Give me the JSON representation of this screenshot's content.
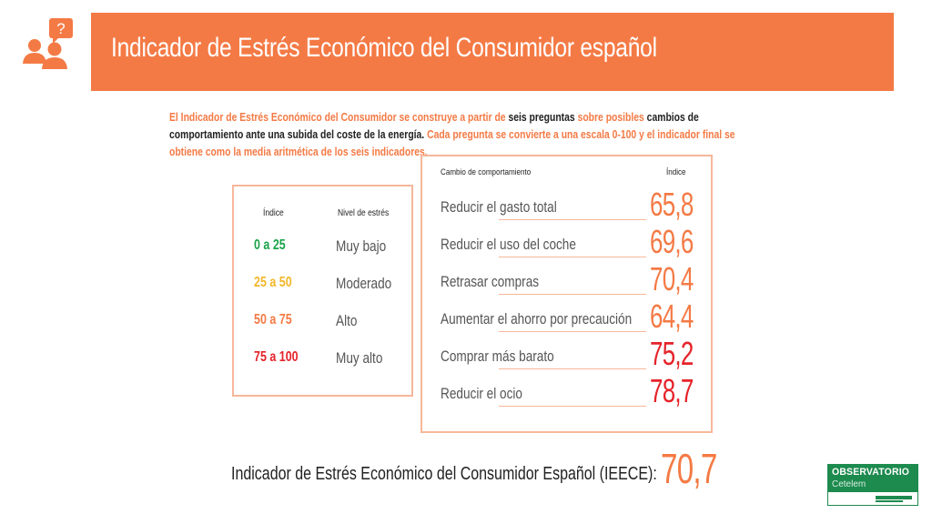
{
  "header": {
    "title": "Indicador de Estrés Económico del Consumidor español",
    "icon": "people-question-icon",
    "color": "#f47a45"
  },
  "intro": {
    "p1": "El Indicador de Estrés Económico del Consumidor se construye a partir de ",
    "p2": "seis preguntas",
    "p3": " sobre posibles ",
    "p4": "cambios de comportamiento ante una subida del coste de la energía.",
    "p5": " Cada pregunta se convierte a una escala 0-100 y el indicador final se obtiene como la media aritmética de los seis indicadores."
  },
  "legend": {
    "col_index": "Índice",
    "col_level": "Nivel de estrés",
    "rows": [
      {
        "range": "0 a 25",
        "level": "Muy bajo",
        "color": "#1aa34a"
      },
      {
        "range": "25 a 50",
        "level": "Moderado",
        "color": "#f3b72a"
      },
      {
        "range": "50 a 75",
        "level": "Alto",
        "color": "#f47a45"
      },
      {
        "range": "75 a 100",
        "level": "Muy alto",
        "color": "#e5232a"
      }
    ]
  },
  "behaviour": {
    "col_change": "Cambio de comportamiento",
    "col_index": "Índice",
    "rows": [
      {
        "label": "Reducir el gasto total",
        "value": "65,8"
      },
      {
        "label": "Reducir el uso del coche",
        "value": "69,6"
      },
      {
        "label": "Retrasar compras",
        "value": "70,4"
      },
      {
        "label": "Aumentar el ahorro por precaución",
        "value": "64,4"
      },
      {
        "label": "Comprar más barato",
        "value": "75,2"
      },
      {
        "label": "Reducir el ocio",
        "value": "78,7"
      }
    ]
  },
  "footer": {
    "label": "Indicador de Estrés Económico del Consumidor Español (IEECE):",
    "value": "70,7"
  },
  "logo": {
    "title": "OBSERVATORIO",
    "subtitle": "Cetelem",
    "color": "#1d8a4e"
  }
}
